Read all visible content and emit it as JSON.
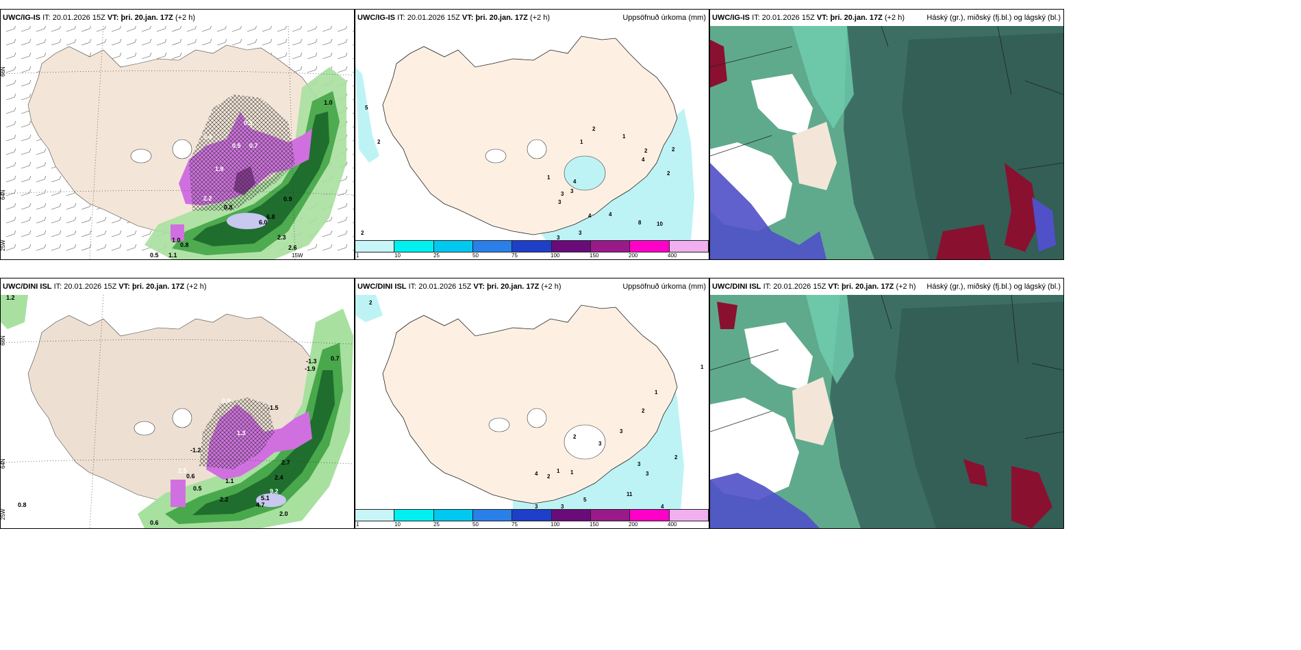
{
  "panels": [
    {
      "id": "p1",
      "model": "UWC/IG-IS",
      "it_label": "IT:",
      "it_value": "20.01.2026 15Z",
      "vt_label": "VT:",
      "vt_value": "þri. 20.jan. 17Z",
      "lead": "(+2 h)",
      "right_title": "",
      "grid_labels": [
        "66N",
        "64N",
        "25W",
        "15W"
      ],
      "values": [
        "1.0",
        "0.4",
        "0.3",
        "1.9",
        "0.7",
        "0.5",
        "2.2",
        "0.8",
        "0.9",
        "6.8",
        "6.0",
        "2.3",
        "2.6",
        "1.0",
        "0.8",
        "0.5",
        "1.1"
      ]
    },
    {
      "id": "p2",
      "model": "UWC/IG-IS",
      "it_label": "IT:",
      "it_value": "20.01.2026 15Z",
      "vt_label": "VT:",
      "vt_value": "þri. 20.jan. 17Z",
      "lead": "(+2 h)",
      "right_title": "Uppsöfnuð úrkoma (mm)",
      "grid_labels": [
        "66N",
        "64N"
      ],
      "values": [
        "5",
        "2",
        "2",
        "1",
        "4",
        "3",
        "1",
        "2",
        "4",
        "2",
        "2",
        "3",
        "4",
        "4",
        "8",
        "10",
        "3",
        "3",
        "2",
        "1",
        "3"
      ]
    },
    {
      "id": "p3",
      "model": "UWC/IG-IS",
      "it_label": "IT:",
      "it_value": "20.01.2026 15Z",
      "vt_label": "VT:",
      "vt_value": "þri. 20.jan. 17Z",
      "lead": "(+2 h)",
      "right_title": "Háský (gr.), miðský (fj.bl.) og lágský (bl.)",
      "grid_labels": [],
      "values": []
    },
    {
      "id": "p4",
      "model": "UWC/DINI ISL",
      "it_label": "IT:",
      "it_value": "20.01.2026 15Z",
      "vt_label": "VT:",
      "vt_value": "þri. 20.jan. 17Z",
      "lead": "(+2 h)",
      "right_title": "",
      "grid_labels": [
        "66N",
        "64N",
        "25W"
      ],
      "values": [
        "1.2",
        "0.7",
        "-1.3",
        "-1.9",
        "0.9",
        "-1.5",
        "1.3",
        "-1.2",
        "2.5",
        "0.6",
        "2.7",
        "2.4",
        "9.2",
        "5.1",
        "4.7",
        "2.0",
        "0.8",
        "0.6",
        "0.5",
        "1.1",
        "2.2"
      ]
    },
    {
      "id": "p5",
      "model": "UWC/DINI ISL",
      "it_label": "IT:",
      "it_value": "20.01.2026 15Z",
      "vt_label": "VT:",
      "vt_value": "þri. 20.jan. 17Z",
      "lead": "(+2 h)",
      "right_title": "Uppsöfnuð úrkoma (mm)",
      "grid_labels": [
        "66N",
        "64N"
      ],
      "values": [
        "2",
        "1",
        "1",
        "2",
        "3",
        "3",
        "2",
        "3",
        "3",
        "2",
        "4",
        "2",
        "1",
        "1",
        "5",
        "11",
        "3",
        "3",
        "4"
      ]
    },
    {
      "id": "p6",
      "model": "UWC/DINI ISL",
      "it_label": "IT:",
      "it_value": "20.01.2026 15Z",
      "vt_label": "VT:",
      "vt_value": "þri. 20.jan. 17Z",
      "lead": "(+2 h)",
      "right_title": "Háský (gr.), miðský (fj.bl.) og lágský (bl.)",
      "grid_labels": [],
      "values": []
    }
  ],
  "colorbar": {
    "labels": [
      "1",
      "10",
      "25",
      "50",
      "75",
      "100",
      "150",
      "200",
      "400"
    ],
    "colors": [
      "#c8f5f8",
      "#00f0f0",
      "#00c8f0",
      "#2a7fe8",
      "#1f3fc8",
      "#6a0b7a",
      "#9a1a8a",
      "#ff00c8",
      "#f0b0f0"
    ]
  },
  "colors": {
    "land": "#f3e6d8",
    "land_dim": "#ede0d2",
    "purple": "#d070e0",
    "green_dark": "#1f6e2e",
    "green_mid": "#49a84b",
    "green_light": "#a8e0a0",
    "teal_dark": "#3d6e64",
    "teal": "#5faa8c",
    "teal_light": "#6fd0b0",
    "blue_cloud": "#5050c8",
    "maroon": "#8a1030",
    "cyan_precip": "#bef3f5"
  }
}
